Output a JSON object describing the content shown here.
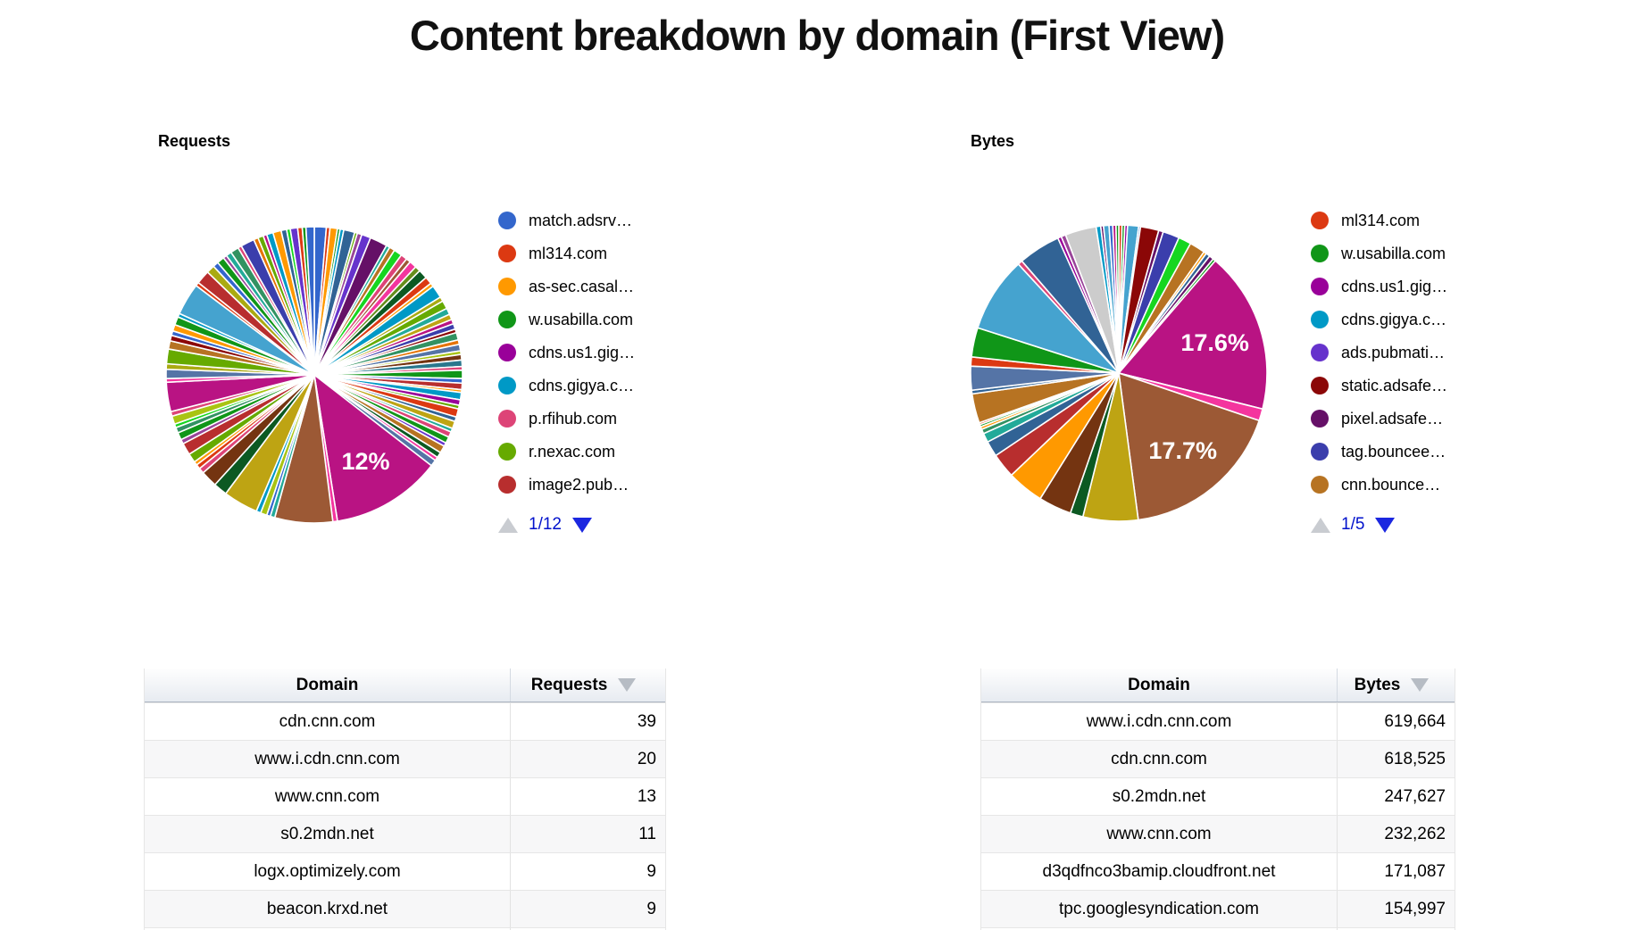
{
  "page": {
    "title": "Content breakdown by domain (First View)"
  },
  "chart_data": [
    {
      "type": "pie",
      "title": "Requests",
      "legend_page": "1/12",
      "legend": [
        {
          "label": "match.adsrv…",
          "color": "#3366cc"
        },
        {
          "label": "ml314.com",
          "color": "#dc3912"
        },
        {
          "label": "as-sec.casal…",
          "color": "#ff9900"
        },
        {
          "label": "w.usabilla.com",
          "color": "#109618"
        },
        {
          "label": "cdns.us1.gig…",
          "color": "#990099"
        },
        {
          "label": "cdns.gigya.c…",
          "color": "#0099c6"
        },
        {
          "label": "p.rfihub.com",
          "color": "#dd4477"
        },
        {
          "label": "r.nexac.com",
          "color": "#66aa00"
        },
        {
          "label": "image2.pub…",
          "color": "#b82e2e"
        }
      ],
      "percent_labels": [
        "12%"
      ],
      "slices": [
        {
          "c": "#3366cc",
          "p": 1.3
        },
        {
          "c": "#dc3912",
          "p": 0.4
        },
        {
          "c": "#ff9900",
          "p": 0.8
        },
        {
          "c": "#109618",
          "p": 0.3
        },
        {
          "c": "#0099c6",
          "p": 0.4
        },
        {
          "c": "#316395",
          "p": 1.2
        },
        {
          "c": "#66aa00",
          "p": 0.3
        },
        {
          "c": "#994499",
          "p": 0.5
        },
        {
          "c": "#6633cc",
          "p": 1.0
        },
        {
          "c": "#651067",
          "p": 1.9
        },
        {
          "c": "#22aa99",
          "p": 0.4
        },
        {
          "c": "#b77322",
          "p": 0.6
        },
        {
          "c": "#16d620",
          "p": 0.9
        },
        {
          "c": "#dd4477",
          "p": 0.7
        },
        {
          "c": "#9c5935",
          "p": 0.5
        },
        {
          "c": "#f4359e",
          "p": 0.8
        },
        {
          "c": "#668d1c",
          "p": 0.6
        },
        {
          "c": "#0c5922",
          "p": 1.0
        },
        {
          "c": "#dc3912",
          "p": 0.8
        },
        {
          "c": "#ff9900",
          "p": 0.4
        },
        {
          "c": "#0099c6",
          "p": 1.4
        },
        {
          "c": "#aaaa11",
          "p": 0.5
        },
        {
          "c": "#66aa00",
          "p": 0.9
        },
        {
          "c": "#22aa99",
          "p": 0.7
        },
        {
          "c": "#bea413",
          "p": 0.6
        },
        {
          "c": "#b91383",
          "p": 0.5
        },
        {
          "c": "#3b3eac",
          "p": 0.6
        },
        {
          "c": "#8b0707",
          "p": 0.4
        },
        {
          "c": "#329262",
          "p": 0.8
        },
        {
          "c": "#e67300",
          "p": 0.5
        },
        {
          "c": "#5574a6",
          "p": 0.7
        },
        {
          "c": "#a9c413",
          "p": 0.4
        },
        {
          "c": "#743411",
          "p": 0.6
        },
        {
          "c": "#2a778d",
          "p": 0.7
        },
        {
          "c": "#dd4477",
          "p": 0.4
        },
        {
          "c": "#109618",
          "p": 0.9
        },
        {
          "c": "#3366cc",
          "p": 0.5
        },
        {
          "c": "#b82e2e",
          "p": 0.7
        },
        {
          "c": "#ff9900",
          "p": 0.3
        },
        {
          "c": "#0099c6",
          "p": 0.8
        },
        {
          "c": "#990099",
          "p": 0.6
        },
        {
          "c": "#66aa00",
          "p": 0.4
        },
        {
          "c": "#dc3912",
          "p": 0.9
        },
        {
          "c": "#316395",
          "p": 0.5
        },
        {
          "c": "#bea413",
          "p": 0.8
        },
        {
          "c": "#22aa99",
          "p": 0.4
        },
        {
          "c": "#dd4477",
          "p": 0.6
        },
        {
          "c": "#109618",
          "p": 0.7
        },
        {
          "c": "#6633cc",
          "p": 0.4
        },
        {
          "c": "#b77322",
          "p": 0.8
        },
        {
          "c": "#0c5922",
          "p": 0.6
        },
        {
          "c": "#f4359e",
          "p": 0.4
        },
        {
          "c": "#5574a6",
          "p": 0.7
        },
        {
          "c": "#b91383",
          "p": 12.0,
          "label": "12%"
        },
        {
          "c": "#f4359e",
          "p": 0.5
        },
        {
          "c": "#9c5935",
          "p": 6.3
        },
        {
          "c": "#22aa99",
          "p": 0.5
        },
        {
          "c": "#3366cc",
          "p": 0.4
        },
        {
          "c": "#a9c413",
          "p": 0.7
        },
        {
          "c": "#0099c6",
          "p": 0.5
        },
        {
          "c": "#bea413",
          "p": 3.8
        },
        {
          "c": "#0c5922",
          "p": 1.5
        },
        {
          "c": "#743411",
          "p": 1.8
        },
        {
          "c": "#dd4477",
          "p": 0.6
        },
        {
          "c": "#dc3912",
          "p": 0.5
        },
        {
          "c": "#ff9900",
          "p": 0.4
        },
        {
          "c": "#66aa00",
          "p": 1.0
        },
        {
          "c": "#b82e2e",
          "p": 1.3
        },
        {
          "c": "#994499",
          "p": 0.5
        },
        {
          "c": "#109618",
          "p": 0.8
        },
        {
          "c": "#329262",
          "p": 0.6
        },
        {
          "c": "#16d620",
          "p": 0.4
        },
        {
          "c": "#a9c413",
          "p": 0.9
        },
        {
          "c": "#dd4477",
          "p": 0.5
        },
        {
          "c": "#b91383",
          "p": 3.2
        },
        {
          "c": "#f4359e",
          "p": 0.4
        },
        {
          "c": "#5574a6",
          "p": 1.0
        },
        {
          "c": "#aaaa11",
          "p": 0.6
        },
        {
          "c": "#66aa00",
          "p": 1.6
        },
        {
          "c": "#b77322",
          "p": 0.9
        },
        {
          "c": "#8b0707",
          "p": 0.6
        },
        {
          "c": "#3366cc",
          "p": 0.5
        },
        {
          "c": "#ff9900",
          "p": 0.7
        },
        {
          "c": "#109618",
          "p": 0.9
        },
        {
          "c": "#0099c6",
          "p": 0.4
        },
        {
          "c": "#45a3cf",
          "p": 3.5
        },
        {
          "c": "#dc3912",
          "p": 0.4
        },
        {
          "c": "#b82e2e",
          "p": 1.5
        },
        {
          "c": "#aaaa11",
          "p": 0.9
        },
        {
          "c": "#3366cc",
          "p": 0.6
        },
        {
          "c": "#109618",
          "p": 0.8
        },
        {
          "c": "#994499",
          "p": 0.4
        },
        {
          "c": "#22aa99",
          "p": 0.6
        },
        {
          "c": "#329262",
          "p": 0.9
        },
        {
          "c": "#dd4477",
          "p": 0.4
        },
        {
          "c": "#3b3eac",
          "p": 1.5
        },
        {
          "c": "#e67300",
          "p": 0.5
        },
        {
          "c": "#66aa00",
          "p": 0.6
        },
        {
          "c": "#b91383",
          "p": 0.4
        },
        {
          "c": "#0099c6",
          "p": 0.7
        },
        {
          "c": "#ff9900",
          "p": 0.9
        },
        {
          "c": "#316395",
          "p": 0.6
        },
        {
          "c": "#16d620",
          "p": 0.4
        },
        {
          "c": "#6633cc",
          "p": 0.8
        },
        {
          "c": "#dc3912",
          "p": 0.5
        },
        {
          "c": "#109618",
          "p": 0.4
        },
        {
          "c": "#3366cc",
          "p": 0.9
        }
      ]
    },
    {
      "type": "pie",
      "title": "Bytes",
      "legend_page": "1/5",
      "legend": [
        {
          "label": "ml314.com",
          "color": "#dc3912"
        },
        {
          "label": "w.usabilla.com",
          "color": "#109618"
        },
        {
          "label": "cdns.us1.gig…",
          "color": "#990099"
        },
        {
          "label": "cdns.gigya.c…",
          "color": "#0099c6"
        },
        {
          "label": "ads.pubmati…",
          "color": "#6633cc"
        },
        {
          "label": "static.adsafe…",
          "color": "#8b0707"
        },
        {
          "label": "pixel.adsafe…",
          "color": "#651067"
        },
        {
          "label": "tag.bouncee…",
          "color": "#3b3eac"
        },
        {
          "label": "cnn.bounce…",
          "color": "#b77322"
        }
      ],
      "percent_labels": [
        "17.6%",
        "17.7%"
      ],
      "slices": [
        {
          "c": "#dc3912",
          "p": 0.35
        },
        {
          "c": "#109618",
          "p": 0.3
        },
        {
          "c": "#990099",
          "p": 0.3
        },
        {
          "c": "#45a3cf",
          "p": 1.2
        },
        {
          "c": "#3366cc",
          "p": 0.2
        },
        {
          "c": "#8b0707",
          "p": 2.0
        },
        {
          "c": "#651067",
          "p": 0.5
        },
        {
          "c": "#3b3eac",
          "p": 1.8
        },
        {
          "c": "#16d620",
          "p": 1.4
        },
        {
          "c": "#b77322",
          "p": 1.7
        },
        {
          "c": "#ff9900",
          "p": 0.3
        },
        {
          "c": "#316395",
          "p": 0.45
        },
        {
          "c": "#651067",
          "p": 0.5
        },
        {
          "c": "#109618",
          "p": 0.3
        },
        {
          "c": "#b91383",
          "p": 17.6,
          "label": "17.6%"
        },
        {
          "c": "#f4359e",
          "p": 1.3
        },
        {
          "c": "#9c5935",
          "p": 17.7,
          "label": "17.7%"
        },
        {
          "c": "#bea413",
          "p": 6.0
        },
        {
          "c": "#0c5922",
          "p": 1.4
        },
        {
          "c": "#743411",
          "p": 3.6
        },
        {
          "c": "#ff9900",
          "p": 4.0
        },
        {
          "c": "#b82e2e",
          "p": 2.7
        },
        {
          "c": "#316395",
          "p": 1.7
        },
        {
          "c": "#22aa99",
          "p": 1.0
        },
        {
          "c": "#329262",
          "p": 0.5
        },
        {
          "c": "#ff9900",
          "p": 0.3
        },
        {
          "c": "#109618",
          "p": 0.25
        },
        {
          "c": "#dc3912",
          "p": 0.2
        },
        {
          "c": "#b77322",
          "p": 3.2
        },
        {
          "c": "#316395",
          "p": 0.4
        },
        {
          "c": "#5574a6",
          "p": 2.6
        },
        {
          "c": "#dc3912",
          "p": 1.0
        },
        {
          "c": "#109618",
          "p": 3.2
        },
        {
          "c": "#45a3cf",
          "p": 8.2
        },
        {
          "c": "#dd4477",
          "p": 0.5
        },
        {
          "c": "#316395",
          "p": 4.6
        },
        {
          "c": "#990099",
          "p": 0.4
        },
        {
          "c": "#994499",
          "p": 0.5
        },
        {
          "c": "#cccccc",
          "p": 3.4
        },
        {
          "c": "#0099c6",
          "p": 0.5
        },
        {
          "c": "#651067",
          "p": 0.3
        },
        {
          "c": "#45a3cf",
          "p": 0.6
        },
        {
          "c": "#3366cc",
          "p": 0.4
        },
        {
          "c": "#b91383",
          "p": 0.35
        },
        {
          "c": "#109618",
          "p": 0.3
        }
      ]
    },
    {
      "type": "table",
      "headers": [
        "Domain",
        "Requests"
      ],
      "sort_column": 1,
      "sort_dir": "desc",
      "rows": [
        [
          "cdn.cnn.com",
          "39"
        ],
        [
          "www.i.cdn.cnn.com",
          "20"
        ],
        [
          "www.cnn.com",
          "13"
        ],
        [
          "s0.2mdn.net",
          "11"
        ],
        [
          "logx.optimizely.com",
          "9"
        ],
        [
          "beacon.krxd.net",
          "9"
        ]
      ]
    },
    {
      "type": "table",
      "headers": [
        "Domain",
        "Bytes"
      ],
      "sort_column": 1,
      "sort_dir": "desc",
      "rows": [
        [
          "www.i.cdn.cnn.com",
          "619,664"
        ],
        [
          "cdn.cnn.com",
          "618,525"
        ],
        [
          "s0.2mdn.net",
          "247,627"
        ],
        [
          "www.cnn.com",
          "232,262"
        ],
        [
          "d3qdfnco3bamip.cloudfront.net",
          "171,087"
        ],
        [
          "tpc.googlesyndication.com",
          "154,997"
        ]
      ]
    }
  ]
}
